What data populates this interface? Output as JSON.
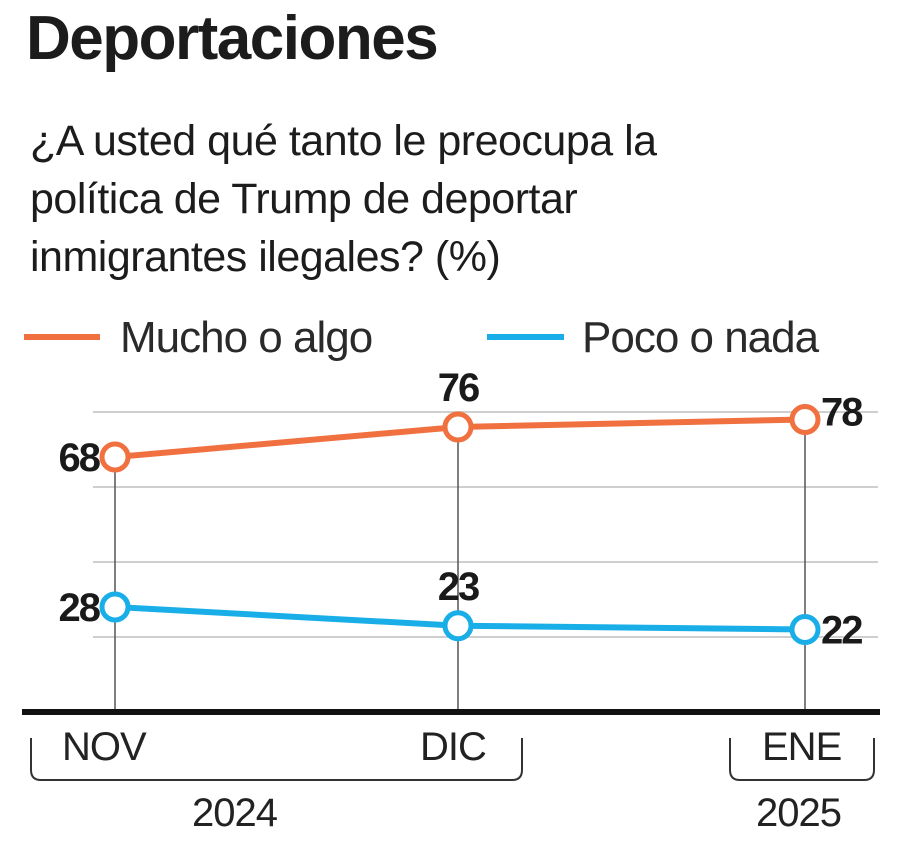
{
  "chart_data": {
    "type": "line",
    "title": "Deportaciones",
    "subtitle": "¿A usted qué tanto le preocupa la política de Trump de deportar inmigrantes ilegales? (%)",
    "subtitle_lines": [
      "¿A usted qué tanto le preocupa la",
      "política de Trump de deportar",
      "inmigrantes ilegales? (%)"
    ],
    "categories": [
      "NOV",
      "DIC",
      "ENE"
    ],
    "year_groups": [
      {
        "label": "2024",
        "categories": [
          "NOV",
          "DIC"
        ]
      },
      {
        "label": "2025",
        "categories": [
          "ENE"
        ]
      }
    ],
    "series": [
      {
        "name": "Mucho o algo",
        "color": "#f07040",
        "values": [
          68,
          76,
          78
        ]
      },
      {
        "name": "Poco o nada",
        "color": "#1aaee8",
        "values": [
          28,
          23,
          22
        ]
      }
    ],
    "xlabel": "",
    "ylabel": "",
    "ylim": [
      0,
      80
    ],
    "gridlines": [
      20,
      40,
      60,
      80
    ],
    "grid": true,
    "legend": "top",
    "data_labels": true
  }
}
